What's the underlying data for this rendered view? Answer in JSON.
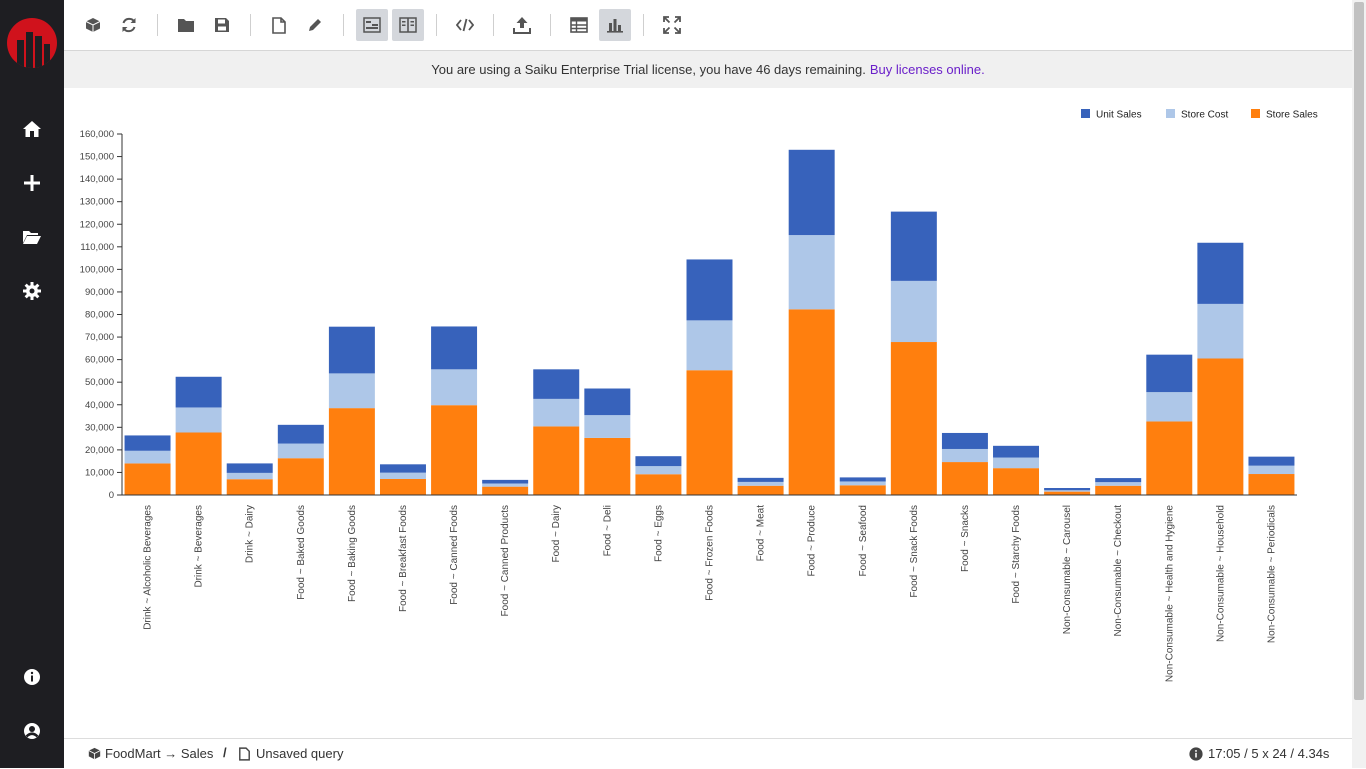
{
  "sidebar": {
    "items": [
      {
        "icon": "home-icon"
      },
      {
        "icon": "plus-icon"
      },
      {
        "icon": "folder-open-icon"
      },
      {
        "icon": "gear-icon"
      }
    ],
    "bottom": [
      {
        "icon": "info-icon"
      },
      {
        "icon": "user-icon"
      }
    ]
  },
  "toolbar": {
    "buttons": [
      {
        "icon": "cube-icon",
        "active": false
      },
      {
        "icon": "refresh-icon",
        "active": false
      },
      {
        "icon": "folder-icon",
        "active": false
      },
      {
        "icon": "save-icon",
        "active": false
      },
      {
        "icon": "new-file-icon",
        "active": false
      },
      {
        "icon": "pencil-icon",
        "active": false
      },
      {
        "icon": "query-panel-icon",
        "active": true
      },
      {
        "icon": "split-view-icon",
        "active": true
      },
      {
        "icon": "code-icon",
        "active": false
      },
      {
        "icon": "upload-icon",
        "active": false
      },
      {
        "icon": "table-icon",
        "active": false
      },
      {
        "icon": "bar-chart-icon",
        "active": true
      },
      {
        "icon": "fullscreen-icon",
        "active": false
      }
    ]
  },
  "license": {
    "text": "You are using a Saiku Enterprise Trial license, you have 46 days remaining.",
    "link": "Buy licenses online."
  },
  "chart_data": {
    "type": "bar",
    "stacked": true,
    "categories": [
      "Drink ~ Alcoholic Beverages",
      "Drink ~ Beverages",
      "Drink ~ Dairy",
      "Food ~ Baked Goods",
      "Food ~ Baking Goods",
      "Food ~ Breakfast Foods",
      "Food ~ Canned Foods",
      "Food ~ Canned Products",
      "Food ~ Dairy",
      "Food ~ Deli",
      "Food ~ Eggs",
      "Food ~ Frozen Foods",
      "Food ~ Meat",
      "Food ~ Produce",
      "Food ~ Seafood",
      "Food ~ Snack Foods",
      "Food ~ Snacks",
      "Food ~ Starchy Foods",
      "Non-Consumable ~ Carousel",
      "Non-Consumable ~ Checkout",
      "Non-Consumable ~ Health and Hygiene",
      "Non-Consumable ~ Household",
      "Non-Consumable ~ Periodicals"
    ],
    "series": [
      {
        "name": "Store Sales",
        "color": "#ff7f0e",
        "values": [
          14000,
          27700,
          7000,
          16300,
          38500,
          7100,
          39800,
          3700,
          30400,
          25300,
          9200,
          55300,
          4100,
          82300,
          4300,
          67800,
          14600,
          11900,
          1500,
          4100,
          32600,
          60500,
          9300
        ]
      },
      {
        "name": "Store Cost",
        "color": "#aec7e8",
        "values": [
          5600,
          11100,
          2800,
          6500,
          15400,
          2800,
          15900,
          1400,
          12200,
          10100,
          3600,
          22100,
          1700,
          32900,
          1700,
          27100,
          5800,
          4700,
          600,
          1600,
          13000,
          24200,
          3700
        ]
      },
      {
        "name": "Unit Sales",
        "color": "#3762bb",
        "values": [
          6800,
          13600,
          4200,
          8300,
          20700,
          3700,
          19000,
          1600,
          13100,
          11800,
          4400,
          27000,
          1800,
          37800,
          1800,
          30700,
          7100,
          5200,
          1000,
          1800,
          16600,
          27100,
          4000
        ]
      }
    ],
    "legend": [
      "Unit Sales",
      "Store Cost",
      "Store Sales"
    ],
    "legend_position": "top-right",
    "ylim": [
      0,
      160000
    ],
    "yticks": [
      "0",
      "10,000",
      "20,000",
      "30,000",
      "40,000",
      "50,000",
      "60,000",
      "70,000",
      "80,000",
      "90,000",
      "100,000",
      "110,000",
      "120,000",
      "130,000",
      "140,000",
      "150,000",
      "160,000"
    ],
    "grid": false
  },
  "status": {
    "cube": "FoodMart → Sales",
    "separator": "/",
    "query": "Unsaved query",
    "info": "17:05 / 5 x 24 / 4.34s"
  }
}
